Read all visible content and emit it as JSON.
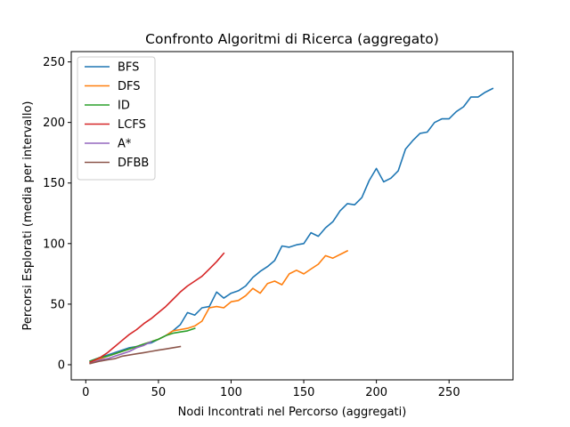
{
  "chart_data": {
    "type": "line",
    "title": "Confronto Algoritmi di Ricerca (aggregato)",
    "xlabel": "Nodi Incontrati nel Percorso (aggregati)",
    "ylabel": "Percorsi Esplorati (media per intervallo)",
    "xlim": [
      -10,
      294
    ],
    "ylim": [
      -12.5,
      258.5
    ],
    "xticks": [
      0,
      50,
      100,
      150,
      200,
      250
    ],
    "yticks": [
      0,
      50,
      100,
      150,
      200,
      250
    ],
    "grid": false,
    "legend_position": "top-left",
    "series": [
      {
        "name": "BFS",
        "color": "#1f77b4",
        "x": [
          3,
          10,
          15,
          20,
          25,
          30,
          35,
          40,
          45,
          50,
          55,
          60,
          65,
          70,
          75,
          80,
          85,
          90,
          95,
          100,
          105,
          110,
          115,
          120,
          125,
          130,
          135,
          140,
          145,
          150,
          155,
          160,
          165,
          170,
          175,
          180,
          185,
          190,
          195,
          200,
          205,
          210,
          215,
          220,
          225,
          230,
          235,
          240,
          245,
          250,
          255,
          260,
          265,
          270,
          275,
          280
        ],
        "values": [
          3,
          6,
          8,
          10,
          12,
          14,
          15,
          17,
          18,
          21,
          24,
          28,
          33,
          43,
          41,
          47,
          48,
          60,
          55,
          59,
          61,
          65,
          72,
          77,
          81,
          86,
          98,
          97,
          99,
          100,
          109,
          106,
          113,
          118,
          127,
          133,
          132,
          138,
          152,
          162,
          151,
          154,
          160,
          178,
          185,
          191,
          192,
          200,
          203,
          203,
          209,
          213,
          221,
          221,
          225,
          228
        ]
      },
      {
        "name": "DFS",
        "color": "#ff7f0e",
        "x": [
          3,
          10,
          15,
          20,
          25,
          30,
          35,
          40,
          45,
          50,
          55,
          60,
          65,
          70,
          75,
          80,
          85,
          90,
          95,
          100,
          105,
          110,
          115,
          120,
          125,
          130,
          135,
          140,
          145,
          150,
          155,
          160,
          165,
          170,
          175,
          180
        ],
        "values": [
          2,
          5,
          7,
          9,
          11,
          13,
          15,
          17,
          19,
          21,
          24,
          28,
          29,
          30,
          32,
          36,
          47,
          48,
          47,
          52,
          53,
          57,
          63,
          59,
          67,
          69,
          66,
          75,
          78,
          75,
          79,
          83,
          90,
          88,
          91,
          94
        ]
      },
      {
        "name": "ID",
        "color": "#2ca02c",
        "x": [
          3,
          10,
          15,
          20,
          25,
          30,
          35,
          40,
          45,
          50,
          55,
          60,
          65,
          70,
          75
        ],
        "values": [
          3,
          6,
          7,
          9,
          11,
          13,
          15,
          17,
          19,
          21,
          24,
          26,
          27,
          28,
          30
        ]
      },
      {
        "name": "LCFS",
        "color": "#d62728",
        "x": [
          3,
          10,
          15,
          20,
          25,
          30,
          35,
          40,
          45,
          50,
          55,
          60,
          65,
          70,
          75,
          80,
          85,
          90,
          95
        ],
        "values": [
          2,
          6,
          10,
          15,
          20,
          25,
          29,
          34,
          38,
          43,
          48,
          54,
          60,
          65,
          69,
          73,
          79,
          85,
          92
        ]
      },
      {
        "name": "A*",
        "color": "#9467bd",
        "x": [
          3,
          10,
          15,
          20,
          25,
          30,
          35,
          40,
          45
        ],
        "values": [
          1,
          4,
          5,
          7,
          9,
          11,
          14,
          16,
          19
        ]
      },
      {
        "name": "DFBB",
        "color": "#8c564b",
        "x": [
          3,
          10,
          15,
          20,
          25,
          30,
          35,
          40,
          45,
          50,
          55,
          60,
          65
        ],
        "values": [
          1,
          3,
          4,
          5,
          7,
          8,
          9,
          10,
          11,
          12,
          13,
          14,
          15
        ]
      }
    ]
  }
}
